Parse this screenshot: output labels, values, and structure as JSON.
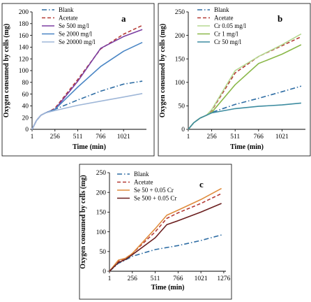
{
  "chart_data": [
    {
      "type": "line",
      "panel_label": "a",
      "xlabel": "Time  (min)",
      "ylabel": "Oxygen consumed by cells (mg)",
      "xlim": [
        1,
        1276
      ],
      "ylim": [
        0,
        200
      ],
      "xticks": [
        1,
        256,
        511,
        766,
        1021
      ],
      "yticks": [
        0,
        20,
        40,
        60,
        80,
        100,
        120,
        140,
        160,
        180,
        200
      ],
      "legend_position": "top-left",
      "series": [
        {
          "name": "Blank",
          "color": "#2e6da4",
          "dash": "dashdot",
          "points": [
            [
              1,
              0
            ],
            [
              50,
              15
            ],
            [
              100,
              24
            ],
            [
              150,
              28
            ],
            [
              200,
              31
            ],
            [
              256,
              34
            ],
            [
              511,
              50
            ],
            [
              766,
              65
            ],
            [
              1021,
              77
            ],
            [
              1230,
              82
            ]
          ]
        },
        {
          "name": "Acetate",
          "color": "#b43a35",
          "dash": "dash",
          "points": [
            [
              1,
              0
            ],
            [
              50,
              15
            ],
            [
              100,
              24
            ],
            [
              150,
              28
            ],
            [
              200,
              31
            ],
            [
              256,
              36
            ],
            [
              511,
              85
            ],
            [
              766,
              137
            ],
            [
              1021,
              162
            ],
            [
              1230,
              177
            ]
          ]
        },
        {
          "name": "Se 500 mg/l",
          "color": "#7b3fa2",
          "dash": "solid",
          "points": [
            [
              1,
              0
            ],
            [
              50,
              15
            ],
            [
              100,
              24
            ],
            [
              150,
              28
            ],
            [
              200,
              31
            ],
            [
              256,
              34
            ],
            [
              511,
              82
            ],
            [
              766,
              138
            ],
            [
              1021,
              158
            ],
            [
              1230,
              170
            ]
          ]
        },
        {
          "name": "Se 2000 mg/l",
          "color": "#4a86c5",
          "dash": "solid",
          "points": [
            [
              1,
              0
            ],
            [
              50,
              15
            ],
            [
              100,
              24
            ],
            [
              150,
              28
            ],
            [
              200,
              31
            ],
            [
              256,
              34
            ],
            [
              511,
              72
            ],
            [
              766,
              107
            ],
            [
              1021,
              133
            ],
            [
              1230,
              148
            ]
          ]
        },
        {
          "name": "Se 20000 mg/l",
          "color": "#9fb7d8",
          "dash": "solid",
          "points": [
            [
              1,
              0
            ],
            [
              50,
              15
            ],
            [
              100,
              24
            ],
            [
              150,
              28
            ],
            [
              200,
              30
            ],
            [
              256,
              32
            ],
            [
              511,
              41
            ],
            [
              766,
              48
            ],
            [
              1021,
              55
            ],
            [
              1230,
              61
            ]
          ]
        }
      ]
    },
    {
      "type": "line",
      "panel_label": "b",
      "xlabel": "Time  (min)",
      "ylabel": "Oxygen consumed by cells (mg)",
      "xlim": [
        1,
        1276
      ],
      "ylim": [
        0,
        250
      ],
      "xticks": [
        1,
        256,
        511,
        766,
        1021
      ],
      "yticks": [
        0,
        50,
        100,
        150,
        200,
        250
      ],
      "legend_position": "top-left",
      "series": [
        {
          "name": "Blank",
          "color": "#2e6da4",
          "dash": "dashdot",
          "points": [
            [
              1,
              0
            ],
            [
              60,
              14
            ],
            [
              130,
              24
            ],
            [
              200,
              30
            ],
            [
              256,
              36
            ],
            [
              511,
              53
            ],
            [
              766,
              66
            ],
            [
              1021,
              80
            ],
            [
              1230,
              92
            ]
          ]
        },
        {
          "name": "Acetate",
          "color": "#b43a35",
          "dash": "dash",
          "points": [
            [
              1,
              0
            ],
            [
              60,
              14
            ],
            [
              130,
              24
            ],
            [
              200,
              30
            ],
            [
              256,
              40
            ],
            [
              511,
              120
            ],
            [
              766,
              155
            ],
            [
              1021,
              178
            ],
            [
              1230,
              197
            ]
          ]
        },
        {
          "name": "Cr 0.05 mg/l",
          "color": "#b5d991",
          "dash": "solid",
          "points": [
            [
              1,
              0
            ],
            [
              60,
              14
            ],
            [
              130,
              24
            ],
            [
              200,
              30
            ],
            [
              256,
              42
            ],
            [
              511,
              125
            ],
            [
              766,
              155
            ],
            [
              1021,
              180
            ],
            [
              1230,
              203
            ]
          ]
        },
        {
          "name": "Cr 1 mg/l",
          "color": "#8bb84a",
          "dash": "solid",
          "points": [
            [
              1,
              0
            ],
            [
              60,
              14
            ],
            [
              130,
              24
            ],
            [
              200,
              30
            ],
            [
              256,
              36
            ],
            [
              511,
              95
            ],
            [
              766,
              140
            ],
            [
              1021,
              160
            ],
            [
              1230,
              180
            ]
          ]
        },
        {
          "name": "Cr 50 mg/l",
          "color": "#3d8ca0",
          "dash": "solid",
          "points": [
            [
              1,
              0
            ],
            [
              60,
              14
            ],
            [
              130,
              24
            ],
            [
              200,
              30
            ],
            [
              256,
              35
            ],
            [
              511,
              44
            ],
            [
              766,
              49
            ],
            [
              1021,
              52
            ],
            [
              1230,
              56
            ]
          ]
        }
      ]
    },
    {
      "type": "line",
      "panel_label": "c",
      "xlabel": "Time (min)",
      "ylabel": "Oxygen consumed by cells (mg)",
      "xlim": [
        1,
        1300
      ],
      "ylim": [
        0,
        250
      ],
      "xticks": [
        1,
        256,
        511,
        766,
        1021,
        1276
      ],
      "yticks": [
        0,
        50,
        100,
        150,
        200,
        250
      ],
      "legend_position": "top-left",
      "series": [
        {
          "name": "Blank",
          "color": "#2e6da4",
          "dash": "dashdot",
          "points": [
            [
              1,
              0
            ],
            [
              100,
              20
            ],
            [
              150,
              25
            ],
            [
              256,
              38
            ],
            [
              511,
              55
            ],
            [
              766,
              65
            ],
            [
              1021,
              78
            ],
            [
              1250,
              92
            ]
          ]
        },
        {
          "name": "Acetate",
          "color": "#b43a35",
          "dash": "dash",
          "points": [
            [
              1,
              0
            ],
            [
              100,
              25
            ],
            [
              180,
              33
            ],
            [
              256,
              45
            ],
            [
              511,
              100
            ],
            [
              640,
              134
            ],
            [
              766,
              148
            ],
            [
              1021,
              172
            ],
            [
              1250,
              197
            ]
          ]
        },
        {
          "name": "Se 50 + 0.05 Cr",
          "color": "#e08c3c",
          "dash": "solid",
          "points": [
            [
              1,
              0
            ],
            [
              100,
              28
            ],
            [
              180,
              33
            ],
            [
              256,
              45
            ],
            [
              511,
              108
            ],
            [
              640,
              142
            ],
            [
              766,
              155
            ],
            [
              1021,
              182
            ],
            [
              1250,
              210
            ]
          ]
        },
        {
          "name": "Se 500 + 0.05 Cr",
          "color": "#6b1f1f",
          "dash": "solid",
          "points": [
            [
              1,
              0
            ],
            [
              100,
              22
            ],
            [
              180,
              30
            ],
            [
              256,
              42
            ],
            [
              511,
              85
            ],
            [
              640,
              118
            ],
            [
              766,
              128
            ],
            [
              1021,
              150
            ],
            [
              1250,
              172
            ]
          ]
        }
      ]
    }
  ]
}
